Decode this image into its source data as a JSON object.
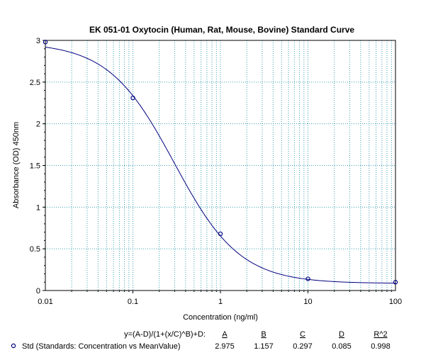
{
  "chart_data": {
    "type": "scatter",
    "title": "EK 051-01 Oxytocin (Human, Rat, Mouse, Bovine) Standard Curve",
    "xlabel": "Concentration (ng/ml)",
    "ylabel": "Absorbance (OD) 450nm",
    "x_scale": "log",
    "xlim": [
      0.01,
      100
    ],
    "ylim": [
      0,
      3
    ],
    "x_ticks": [
      "0.01",
      "0.1",
      "1",
      "10",
      "100"
    ],
    "y_ticks": [
      "0",
      "0.5",
      "1",
      "1.5",
      "2",
      "2.5",
      "3"
    ],
    "grid": true,
    "colors": {
      "curve": "#000080",
      "grid": "#3a9fb0",
      "points": "#000080"
    },
    "points": [
      {
        "x": 0.01,
        "y": 2.98
      },
      {
        "x": 0.1,
        "y": 2.31
      },
      {
        "x": 1,
        "y": 0.68
      },
      {
        "x": 10,
        "y": 0.14
      },
      {
        "x": 100,
        "y": 0.1
      }
    ],
    "fit": {
      "equation": "y=(A-D)/(1+(x/C)^B)+D:",
      "headers": [
        "A",
        "B",
        "C",
        "D",
        "R^2"
      ],
      "A": 2.975,
      "B": 1.157,
      "C": 0.297,
      "D": 0.085,
      "R2": 0.998,
      "values": [
        "2.975",
        "1.157",
        "0.297",
        "0.085",
        "0.998"
      ]
    },
    "legend": "Std (Standards: Concentration vs MeanValue)"
  }
}
